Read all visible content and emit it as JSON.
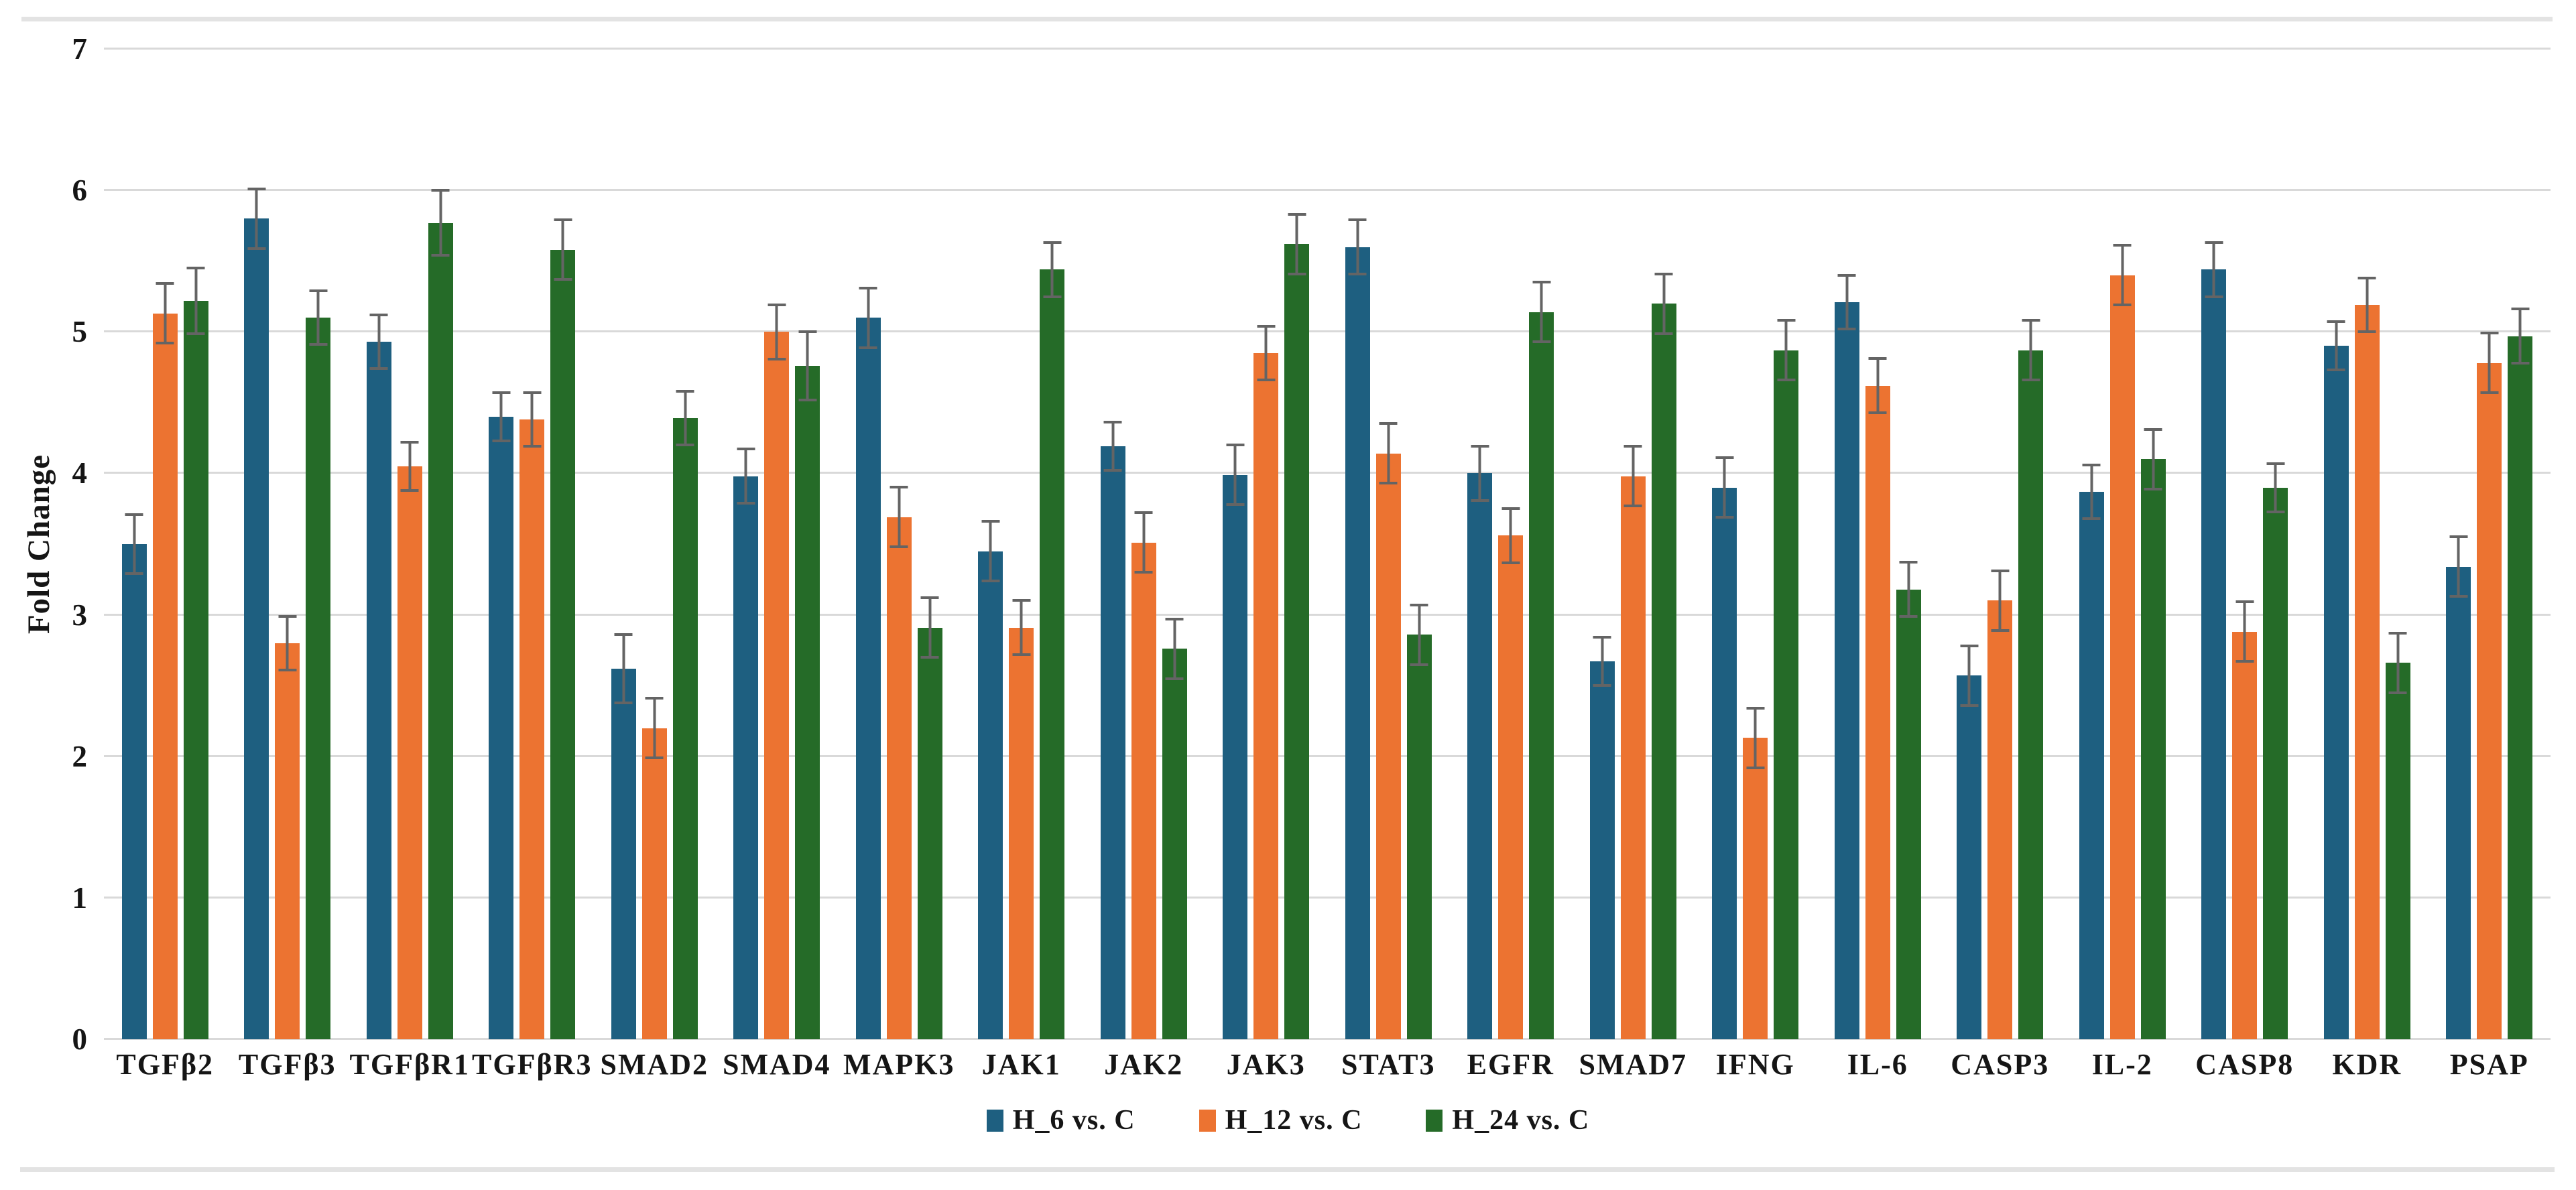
{
  "chart_data": {
    "type": "bar",
    "title": "",
    "xlabel": "",
    "ylabel": "Fold Change",
    "ylim": [
      0,
      7
    ],
    "yticks": [
      0,
      1,
      2,
      3,
      4,
      5,
      6,
      7
    ],
    "grid": true,
    "legend_position": "bottom",
    "error_bars": true,
    "categories": [
      "TGFβ2",
      "TGFβ3",
      "TGFβR1",
      "TGFβR3",
      "SMAD2",
      "SMAD4",
      "MAPK3",
      "JAK1",
      "JAK2",
      "JAK3",
      "STAT3",
      "EGFR",
      "SMAD7",
      "IFNG",
      "IL-6",
      "CASP3",
      "IL-2",
      "CASP8",
      "KDR",
      "PSAP"
    ],
    "series": [
      {
        "name": "H_6 vs. C",
        "color": "#1E5F80",
        "values": [
          3.5,
          5.8,
          4.93,
          4.4,
          2.62,
          3.98,
          5.1,
          3.45,
          4.19,
          3.99,
          5.6,
          4.0,
          2.67,
          3.9,
          5.21,
          2.57,
          3.87,
          5.44,
          4.9,
          3.34
        ],
        "errors": [
          0.22,
          0.22,
          0.2,
          0.18,
          0.25,
          0.2,
          0.22,
          0.22,
          0.18,
          0.22,
          0.2,
          0.2,
          0.18,
          0.22,
          0.2,
          0.22,
          0.2,
          0.2,
          0.18,
          0.22
        ]
      },
      {
        "name": "H_12 vs. C",
        "color": "#EC7331",
        "values": [
          5.13,
          2.8,
          4.05,
          4.38,
          2.2,
          5.0,
          3.69,
          2.91,
          3.51,
          4.85,
          4.14,
          3.56,
          3.98,
          2.13,
          4.62,
          3.1,
          5.4,
          2.88,
          5.19,
          4.78
        ],
        "errors": [
          0.22,
          0.2,
          0.18,
          0.2,
          0.22,
          0.2,
          0.22,
          0.2,
          0.22,
          0.2,
          0.22,
          0.2,
          0.22,
          0.22,
          0.2,
          0.22,
          0.22,
          0.22,
          0.2,
          0.22
        ]
      },
      {
        "name": "H_24 vs. C",
        "color": "#256B28",
        "values": [
          5.22,
          5.1,
          5.77,
          5.58,
          4.39,
          4.76,
          2.91,
          5.44,
          2.76,
          5.62,
          2.86,
          5.14,
          5.2,
          4.87,
          3.18,
          4.87,
          4.1,
          3.9,
          2.66,
          4.97
        ],
        "errors": [
          0.24,
          0.2,
          0.24,
          0.22,
          0.2,
          0.25,
          0.22,
          0.2,
          0.22,
          0.22,
          0.22,
          0.22,
          0.22,
          0.22,
          0.2,
          0.22,
          0.22,
          0.18,
          0.22,
          0.2
        ]
      }
    ],
    "colors": {
      "gridline": "#d9d9d9",
      "error_bar": "#646464",
      "page_rule": "#e3e3e3",
      "text": "#151515"
    }
  }
}
